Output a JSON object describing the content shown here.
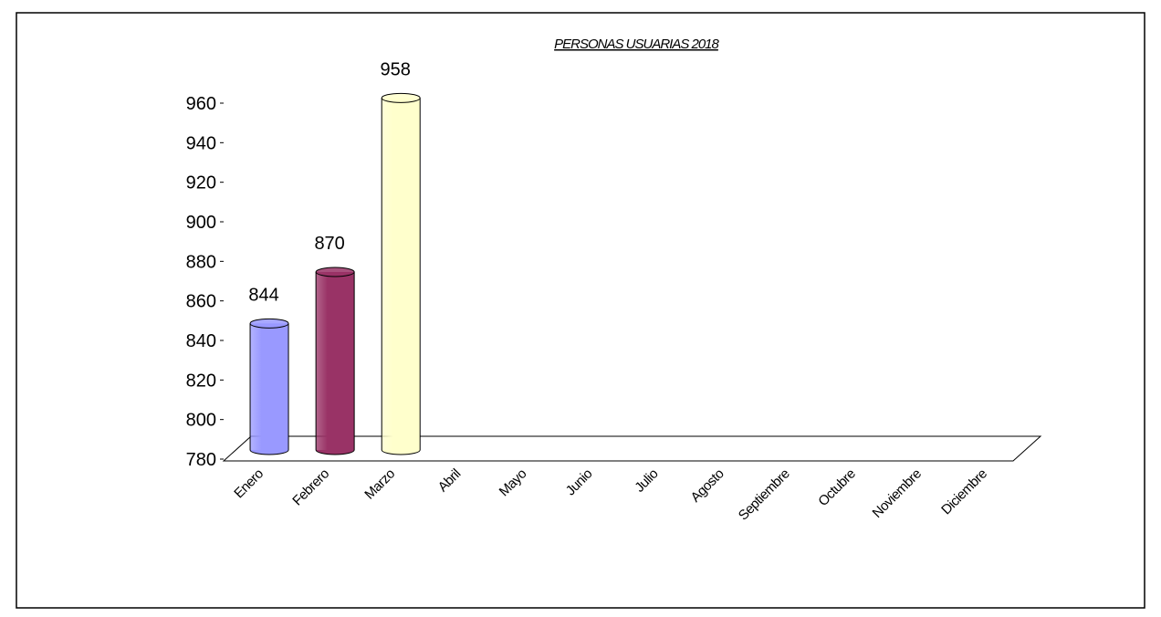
{
  "chart_data": {
    "type": "bar",
    "title": "PERSONAS USUARIAS 2018",
    "categories": [
      "Enero",
      "Febrero",
      "Marzo",
      "Abril",
      "Mayo",
      "Junio",
      "Julio",
      "Agosto",
      "Septiembre",
      "Octubre",
      "Noviembre",
      "Diciembre"
    ],
    "values": [
      844,
      870,
      958,
      null,
      null,
      null,
      null,
      null,
      null,
      null,
      null,
      null
    ],
    "colors": [
      "#9999ff",
      "#993366",
      "#ffffcc"
    ],
    "ylim": [
      780,
      960
    ],
    "yticks": [
      780,
      800,
      820,
      840,
      860,
      880,
      900,
      920,
      940,
      960
    ],
    "show_value_labels": true
  }
}
